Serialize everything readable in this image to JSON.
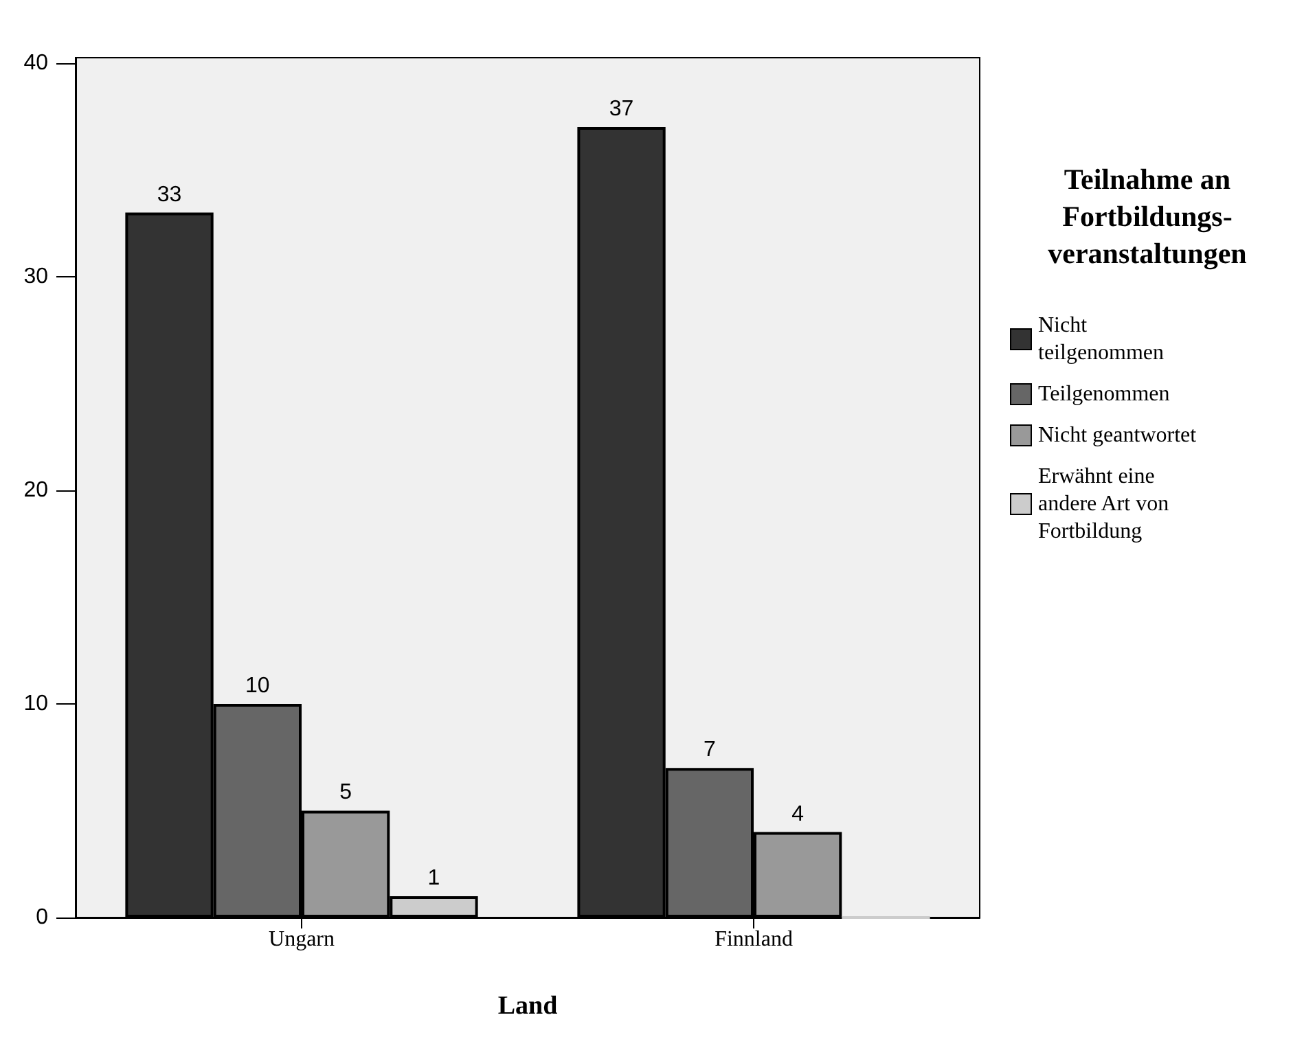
{
  "chart_data": {
    "type": "bar",
    "xlabel": "Land",
    "legend_title": "Teilnahme an Fortbildungs-veranstaltungen",
    "categories": [
      "Ungarn",
      "Finnland"
    ],
    "series": [
      {
        "name": "Nicht teilgenommen",
        "color": "#333333",
        "values": [
          33,
          37
        ],
        "value_labels": [
          "33",
          "37"
        ]
      },
      {
        "name": "Teilgenommen",
        "color": "#666666",
        "values": [
          10,
          7
        ],
        "value_labels": [
          "10",
          "7"
        ]
      },
      {
        "name": "Nicht geantwortet",
        "color": "#999999",
        "values": [
          5,
          4
        ],
        "value_labels": [
          "5",
          "4"
        ]
      },
      {
        "name": "Erwähnt eine andere Art von Fortbildung",
        "color": "#cccccc",
        "values": [
          1,
          0
        ],
        "value_labels": [
          "1",
          null
        ]
      }
    ],
    "ylim": [
      0,
      40.25
    ],
    "yticks": [
      0,
      10,
      20,
      30,
      40
    ],
    "grid": false,
    "legend": "right"
  }
}
